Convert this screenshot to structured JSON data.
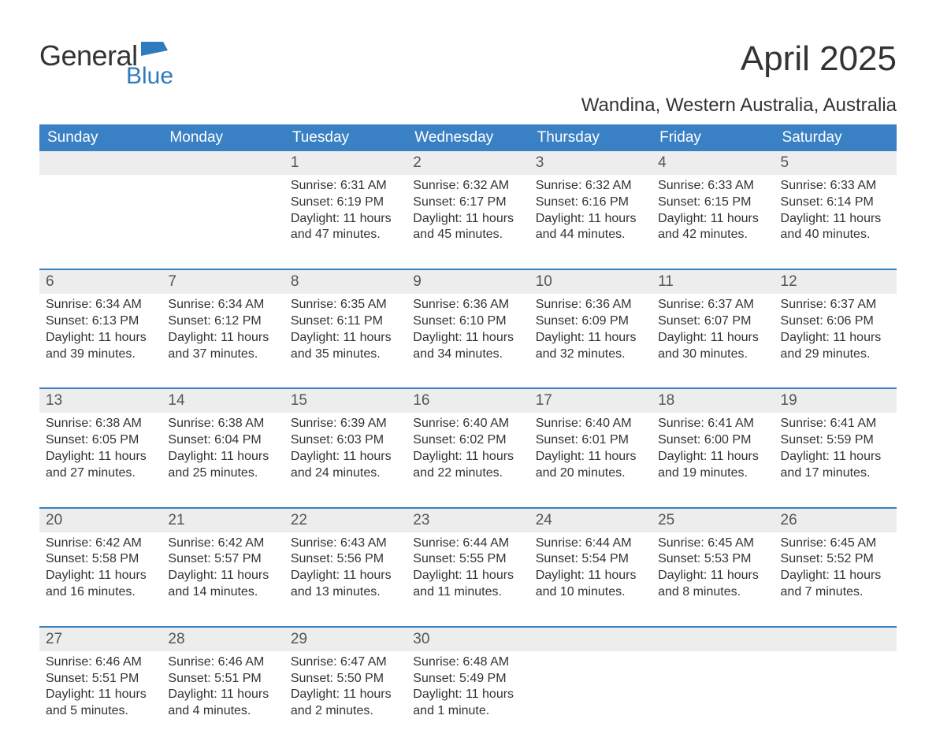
{
  "brand": {
    "word1": "General",
    "word2": "Blue",
    "word1_color": "#333333",
    "word2_color": "#2f7bbf",
    "flag_color": "#2f7bbf"
  },
  "title": "April 2025",
  "location": "Wandina, Western Australia, Australia",
  "colors": {
    "header_bg": "#3a80c4",
    "header_text": "#ffffff",
    "daynum_bg": "#ededed",
    "daynum_text": "#555555",
    "body_text": "#333333",
    "week_separator": "#3a80c4",
    "page_bg": "#ffffff"
  },
  "fonts": {
    "title_size_pt": 33,
    "location_size_pt": 18,
    "dayheader_size_pt": 14,
    "daynum_size_pt": 14,
    "daydata_size_pt": 12
  },
  "layout": {
    "columns": 7,
    "rows": 5,
    "first_day_column_index": 2
  },
  "day_headers": [
    "Sunday",
    "Monday",
    "Tuesday",
    "Wednesday",
    "Thursday",
    "Friday",
    "Saturday"
  ],
  "weeks": [
    {
      "days": [
        null,
        null,
        {
          "num": "1",
          "sunrise": "Sunrise: 6:31 AM",
          "sunset": "Sunset: 6:19 PM",
          "daylight": "Daylight: 11 hours and 47 minutes."
        },
        {
          "num": "2",
          "sunrise": "Sunrise: 6:32 AM",
          "sunset": "Sunset: 6:17 PM",
          "daylight": "Daylight: 11 hours and 45 minutes."
        },
        {
          "num": "3",
          "sunrise": "Sunrise: 6:32 AM",
          "sunset": "Sunset: 6:16 PM",
          "daylight": "Daylight: 11 hours and 44 minutes."
        },
        {
          "num": "4",
          "sunrise": "Sunrise: 6:33 AM",
          "sunset": "Sunset: 6:15 PM",
          "daylight": "Daylight: 11 hours and 42 minutes."
        },
        {
          "num": "5",
          "sunrise": "Sunrise: 6:33 AM",
          "sunset": "Sunset: 6:14 PM",
          "daylight": "Daylight: 11 hours and 40 minutes."
        }
      ]
    },
    {
      "days": [
        {
          "num": "6",
          "sunrise": "Sunrise: 6:34 AM",
          "sunset": "Sunset: 6:13 PM",
          "daylight": "Daylight: 11 hours and 39 minutes."
        },
        {
          "num": "7",
          "sunrise": "Sunrise: 6:34 AM",
          "sunset": "Sunset: 6:12 PM",
          "daylight": "Daylight: 11 hours and 37 minutes."
        },
        {
          "num": "8",
          "sunrise": "Sunrise: 6:35 AM",
          "sunset": "Sunset: 6:11 PM",
          "daylight": "Daylight: 11 hours and 35 minutes."
        },
        {
          "num": "9",
          "sunrise": "Sunrise: 6:36 AM",
          "sunset": "Sunset: 6:10 PM",
          "daylight": "Daylight: 11 hours and 34 minutes."
        },
        {
          "num": "10",
          "sunrise": "Sunrise: 6:36 AM",
          "sunset": "Sunset: 6:09 PM",
          "daylight": "Daylight: 11 hours and 32 minutes."
        },
        {
          "num": "11",
          "sunrise": "Sunrise: 6:37 AM",
          "sunset": "Sunset: 6:07 PM",
          "daylight": "Daylight: 11 hours and 30 minutes."
        },
        {
          "num": "12",
          "sunrise": "Sunrise: 6:37 AM",
          "sunset": "Sunset: 6:06 PM",
          "daylight": "Daylight: 11 hours and 29 minutes."
        }
      ]
    },
    {
      "days": [
        {
          "num": "13",
          "sunrise": "Sunrise: 6:38 AM",
          "sunset": "Sunset: 6:05 PM",
          "daylight": "Daylight: 11 hours and 27 minutes."
        },
        {
          "num": "14",
          "sunrise": "Sunrise: 6:38 AM",
          "sunset": "Sunset: 6:04 PM",
          "daylight": "Daylight: 11 hours and 25 minutes."
        },
        {
          "num": "15",
          "sunrise": "Sunrise: 6:39 AM",
          "sunset": "Sunset: 6:03 PM",
          "daylight": "Daylight: 11 hours and 24 minutes."
        },
        {
          "num": "16",
          "sunrise": "Sunrise: 6:40 AM",
          "sunset": "Sunset: 6:02 PM",
          "daylight": "Daylight: 11 hours and 22 minutes."
        },
        {
          "num": "17",
          "sunrise": "Sunrise: 6:40 AM",
          "sunset": "Sunset: 6:01 PM",
          "daylight": "Daylight: 11 hours and 20 minutes."
        },
        {
          "num": "18",
          "sunrise": "Sunrise: 6:41 AM",
          "sunset": "Sunset: 6:00 PM",
          "daylight": "Daylight: 11 hours and 19 minutes."
        },
        {
          "num": "19",
          "sunrise": "Sunrise: 6:41 AM",
          "sunset": "Sunset: 5:59 PM",
          "daylight": "Daylight: 11 hours and 17 minutes."
        }
      ]
    },
    {
      "days": [
        {
          "num": "20",
          "sunrise": "Sunrise: 6:42 AM",
          "sunset": "Sunset: 5:58 PM",
          "daylight": "Daylight: 11 hours and 16 minutes."
        },
        {
          "num": "21",
          "sunrise": "Sunrise: 6:42 AM",
          "sunset": "Sunset: 5:57 PM",
          "daylight": "Daylight: 11 hours and 14 minutes."
        },
        {
          "num": "22",
          "sunrise": "Sunrise: 6:43 AM",
          "sunset": "Sunset: 5:56 PM",
          "daylight": "Daylight: 11 hours and 13 minutes."
        },
        {
          "num": "23",
          "sunrise": "Sunrise: 6:44 AM",
          "sunset": "Sunset: 5:55 PM",
          "daylight": "Daylight: 11 hours and 11 minutes."
        },
        {
          "num": "24",
          "sunrise": "Sunrise: 6:44 AM",
          "sunset": "Sunset: 5:54 PM",
          "daylight": "Daylight: 11 hours and 10 minutes."
        },
        {
          "num": "25",
          "sunrise": "Sunrise: 6:45 AM",
          "sunset": "Sunset: 5:53 PM",
          "daylight": "Daylight: 11 hours and 8 minutes."
        },
        {
          "num": "26",
          "sunrise": "Sunrise: 6:45 AM",
          "sunset": "Sunset: 5:52 PM",
          "daylight": "Daylight: 11 hours and 7 minutes."
        }
      ]
    },
    {
      "days": [
        {
          "num": "27",
          "sunrise": "Sunrise: 6:46 AM",
          "sunset": "Sunset: 5:51 PM",
          "daylight": "Daylight: 11 hours and 5 minutes."
        },
        {
          "num": "28",
          "sunrise": "Sunrise: 6:46 AM",
          "sunset": "Sunset: 5:51 PM",
          "daylight": "Daylight: 11 hours and 4 minutes."
        },
        {
          "num": "29",
          "sunrise": "Sunrise: 6:47 AM",
          "sunset": "Sunset: 5:50 PM",
          "daylight": "Daylight: 11 hours and 2 minutes."
        },
        {
          "num": "30",
          "sunrise": "Sunrise: 6:48 AM",
          "sunset": "Sunset: 5:49 PM",
          "daylight": "Daylight: 11 hours and 1 minute."
        },
        null,
        null,
        null
      ]
    }
  ]
}
